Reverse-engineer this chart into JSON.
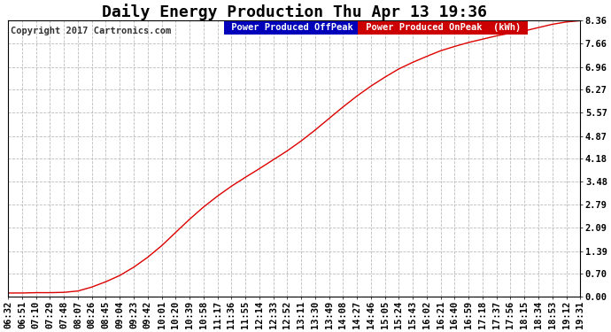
{
  "title": "Daily Energy Production Thu Apr 13 19:36",
  "copyright_text": "Copyright 2017 Cartronics.com",
  "legend_offpeak_label": "Power Produced OffPeak  (kWh)",
  "legend_onpeak_label": "Power Produced OnPeak  (kWh)",
  "legend_offpeak_color": "#0000bb",
  "legend_onpeak_color": "#cc0000",
  "line_color": "#dd0000",
  "background_color": "#ffffff",
  "grid_color": "#bbbbbb",
  "yticks": [
    0.0,
    0.7,
    1.39,
    2.09,
    2.79,
    3.48,
    4.18,
    4.87,
    5.57,
    6.27,
    6.96,
    7.66,
    8.36
  ],
  "xtick_labels": [
    "06:32",
    "06:51",
    "07:10",
    "07:29",
    "07:48",
    "08:07",
    "08:26",
    "08:45",
    "09:04",
    "09:23",
    "09:42",
    "10:01",
    "10:20",
    "10:39",
    "10:58",
    "11:17",
    "11:36",
    "11:55",
    "12:14",
    "12:33",
    "12:52",
    "13:11",
    "13:30",
    "13:49",
    "14:08",
    "14:27",
    "14:46",
    "15:05",
    "15:24",
    "15:43",
    "16:02",
    "16:21",
    "16:40",
    "16:59",
    "17:18",
    "17:37",
    "17:56",
    "18:15",
    "18:34",
    "18:53",
    "19:12",
    "19:31"
  ],
  "title_fontsize": 13,
  "tick_fontsize": 7.5,
  "legend_fontsize": 7.5,
  "copyright_fontsize": 7.5,
  "curve_y": [
    0.12,
    0.12,
    0.13,
    0.13,
    0.14,
    0.18,
    0.3,
    0.46,
    0.65,
    0.9,
    1.2,
    1.55,
    1.95,
    2.35,
    2.72,
    3.05,
    3.35,
    3.62,
    3.88,
    4.15,
    4.42,
    4.72,
    5.05,
    5.4,
    5.75,
    6.08,
    6.38,
    6.65,
    6.9,
    7.1,
    7.28,
    7.45,
    7.58,
    7.7,
    7.8,
    7.9,
    7.98,
    8.05,
    8.15,
    8.25,
    8.32,
    8.36
  ]
}
